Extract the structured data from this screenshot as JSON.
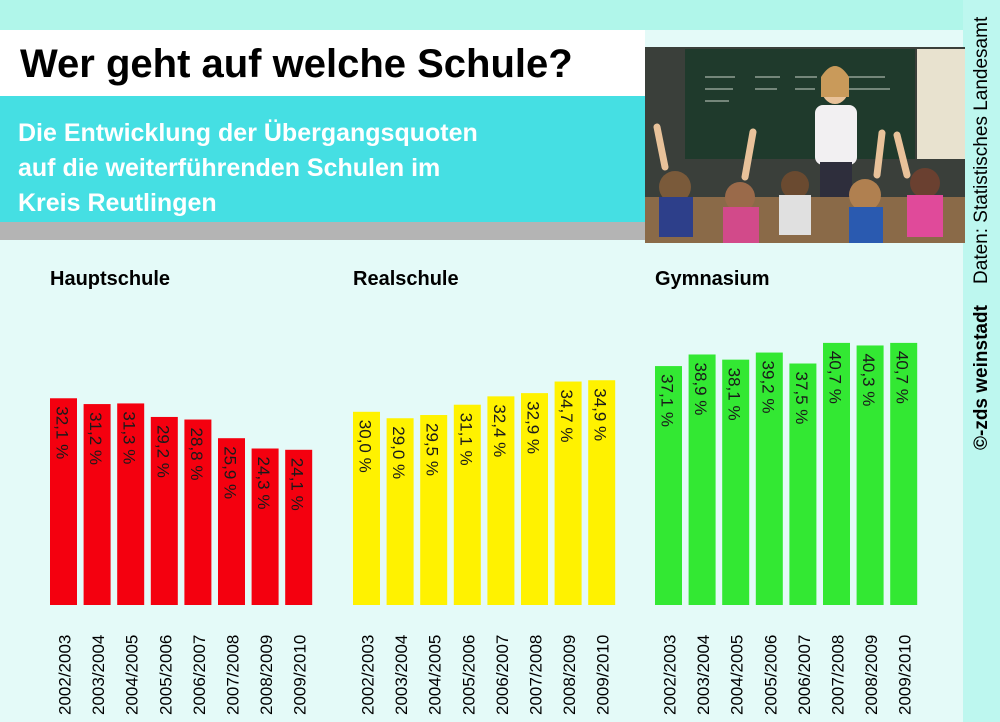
{
  "header": {
    "title": "Wer geht auf welche Schule?",
    "subtitle_lines": [
      "Die Entwicklung der Übergangsquoten",
      "auf die weiterführenden Schulen im",
      "Kreis Reutlingen"
    ]
  },
  "footer": {
    "source": "Daten: Statistisches Landesamt",
    "credit": "©-zds weinstadt"
  },
  "colors": {
    "background": "#e4faf8",
    "subtitle_box": "#45dfe3",
    "hauptschule": "#f4000f",
    "realschule": "#fff200",
    "gymnasium": "#33e833"
  },
  "chart_data": [
    {
      "type": "bar",
      "title": "Hauptschule",
      "categories": [
        "2002/2003",
        "2003/2004",
        "2004/2005",
        "2005/2006",
        "2006/2007",
        "2007/2008",
        "2008/2009",
        "2009/2010"
      ],
      "values": [
        32.1,
        31.2,
        31.3,
        29.2,
        28.8,
        25.9,
        24.3,
        24.1
      ],
      "labels": [
        "32,1 %",
        "31,2 %",
        "31,3 %",
        "29,2 %",
        "28,8 %",
        "25,9 %",
        "24,3 %",
        "24,1 %"
      ],
      "color": "#f4000f",
      "unit": "%"
    },
    {
      "type": "bar",
      "title": "Realschule",
      "categories": [
        "2002/2003",
        "2003/2004",
        "2004/2005",
        "2005/2006",
        "2006/2007",
        "2007/2008",
        "2008/2009",
        "2009/2010"
      ],
      "values": [
        30.0,
        29.0,
        29.5,
        31.1,
        32.4,
        32.9,
        34.7,
        34.9
      ],
      "labels": [
        "30,0 %",
        "29,0 %",
        "29,5 %",
        "31,1 %",
        "32,4 %",
        "32,9 %",
        "34,7 %",
        "34,9 %"
      ],
      "color": "#fff200",
      "unit": "%"
    },
    {
      "type": "bar",
      "title": "Gymnasium",
      "categories": [
        "2002/2003",
        "2003/2004",
        "2004/2005",
        "2005/2006",
        "2006/2007",
        "2007/2008",
        "2008/2009",
        "2009/2010"
      ],
      "values": [
        37.1,
        38.9,
        38.1,
        39.2,
        37.5,
        40.7,
        40.3,
        40.7
      ],
      "labels": [
        "37,1 %",
        "38,9 %",
        "38,1 %",
        "39,2 %",
        "37,5 %",
        "40,7 %",
        "40,3 %",
        "40,7 %"
      ],
      "color": "#33e833",
      "unit": "%"
    }
  ]
}
